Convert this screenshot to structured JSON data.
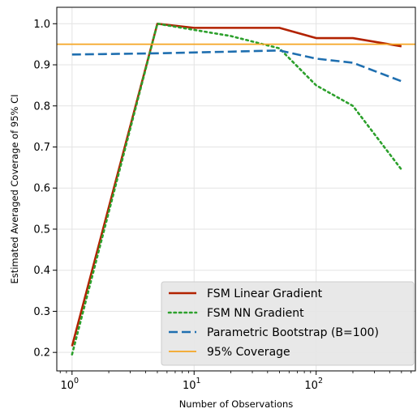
{
  "chart_data": {
    "type": "line",
    "xscale": "log",
    "xlabel": "Number of Observations",
    "ylabel": "Estimated Averaged Coverage of 95% CI",
    "xlim": [
      0.75,
      650
    ],
    "ylim": [
      0.155,
      1.04
    ],
    "x_ticks": [
      {
        "value": 1,
        "base": "10",
        "exp": "0"
      },
      {
        "value": 10,
        "base": "10",
        "exp": "1"
      },
      {
        "value": 100,
        "base": "10",
        "exp": "2"
      }
    ],
    "y_ticks": [
      {
        "value": 0.2,
        "label": "0.2"
      },
      {
        "value": 0.3,
        "label": "0.3"
      },
      {
        "value": 0.4,
        "label": "0.4"
      },
      {
        "value": 0.5,
        "label": "0.5"
      },
      {
        "value": 0.6,
        "label": "0.6"
      },
      {
        "value": 0.7,
        "label": "0.7"
      },
      {
        "value": 0.8,
        "label": "0.8"
      },
      {
        "value": 0.9,
        "label": "0.9"
      },
      {
        "value": 1.0,
        "label": "1.0"
      }
    ],
    "grid": true,
    "legend_position": "lower-right",
    "series": [
      {
        "name": "FSM Linear Gradient",
        "color": "#b22200",
        "dash": "solid",
        "x": [
          1,
          5,
          10,
          20,
          50,
          100,
          200,
          500
        ],
        "y": [
          0.215,
          1.0,
          0.99,
          0.99,
          0.99,
          0.965,
          0.965,
          0.945
        ]
      },
      {
        "name": "FSM NN Gradient",
        "color": "#2ca02c",
        "dash": "dotted",
        "x": [
          1,
          5,
          10,
          20,
          50,
          100,
          200,
          500
        ],
        "y": [
          0.195,
          1.0,
          0.985,
          0.97,
          0.94,
          0.85,
          0.8,
          0.645
        ]
      },
      {
        "name": "Parametric Bootstrap (B=100)",
        "color": "#1f6fb0",
        "dash": "dashed",
        "x": [
          1,
          5,
          10,
          20,
          50,
          100,
          200,
          500
        ],
        "y": [
          0.925,
          0.928,
          0.93,
          0.932,
          0.935,
          0.915,
          0.905,
          0.86
        ]
      }
    ],
    "reference_line": {
      "name": "95% Coverage",
      "color": "#f5a623",
      "y": 0.95
    }
  }
}
